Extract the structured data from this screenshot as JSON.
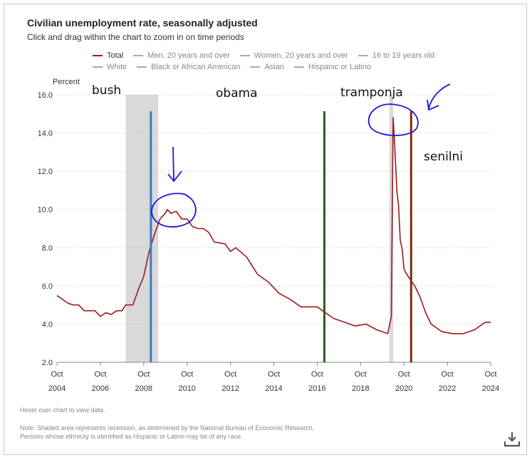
{
  "title": "Civilian unemployment rate, seasonally adjusted",
  "subtitle": "Click and drag within the chart to zoom in on time periods",
  "legend": {
    "row1": [
      "Total",
      "Men, 20 years and over",
      "Women, 20 years and over",
      "16 to 19 years old"
    ],
    "row2": [
      "White",
      "Black or African American",
      "Asian",
      "Hispanic or Latino"
    ]
  },
  "notes": {
    "hover": "Hover over chart to view data.",
    "note1": "Note: Shaded area represents recession, as determined by the National Bureau of Economic Research.",
    "note2": "Persons whose ethnicity is identified as Hispanic or Latino may be of any race."
  },
  "icons": {
    "download": "download-icon"
  },
  "colors": {
    "total": "#9b1b1b",
    "recession": "#d9d9d9",
    "bush_line": "#3a78c9",
    "trump_line": "#2d5a1e",
    "biden_line": "#7a2a10",
    "ink": "#1a1ad6"
  },
  "chart_data": {
    "type": "line",
    "title": "Civilian unemployment rate, seasonally adjusted",
    "ylabel": "Percent",
    "ylim": [
      2.0,
      16.0
    ],
    "xlim": [
      2004.75,
      2024.75
    ],
    "yticks": [
      "2.0",
      "4.0",
      "6.0",
      "8.0",
      "10.0",
      "12.0",
      "14.0",
      "16.0"
    ],
    "xticks": [
      {
        "x": 2004.75,
        "month": "Oct",
        "year": "2004"
      },
      {
        "x": 2006.75,
        "month": "Oct",
        "year": "2006"
      },
      {
        "x": 2008.75,
        "month": "Oct",
        "year": "2008"
      },
      {
        "x": 2010.75,
        "month": "Oct",
        "year": "2010"
      },
      {
        "x": 2012.75,
        "month": "Oct",
        "year": "2012"
      },
      {
        "x": 2014.75,
        "month": "Oct",
        "year": "2014"
      },
      {
        "x": 2016.75,
        "month": "Oct",
        "year": "2016"
      },
      {
        "x": 2018.75,
        "month": "Oct",
        "year": "2018"
      },
      {
        "x": 2020.75,
        "month": "Oct",
        "year": "2020"
      },
      {
        "x": 2022.75,
        "month": "Oct",
        "year": "2022"
      },
      {
        "x": 2024.75,
        "month": "Oct",
        "year": "2024"
      }
    ],
    "recessions": [
      [
        2007.92,
        2009.42
      ],
      [
        2020.08,
        2020.25
      ]
    ],
    "grid": true,
    "series": [
      {
        "name": "Total",
        "x": [
          2004.75,
          2005.0,
          2005.25,
          2005.5,
          2005.75,
          2006.0,
          2006.25,
          2006.5,
          2006.75,
          2007.0,
          2007.25,
          2007.5,
          2007.75,
          2007.92,
          2008.25,
          2008.5,
          2008.75,
          2009.0,
          2009.25,
          2009.5,
          2009.75,
          2009.83,
          2010.0,
          2010.25,
          2010.5,
          2010.75,
          2011.0,
          2011.25,
          2011.5,
          2011.75,
          2012.0,
          2012.5,
          2012.75,
          2013.0,
          2013.5,
          2014.0,
          2014.5,
          2015.0,
          2015.5,
          2016.0,
          2016.5,
          2016.75,
          2017.0,
          2017.5,
          2018.0,
          2018.5,
          2019.0,
          2019.5,
          2020.0,
          2020.17,
          2020.25,
          2020.33,
          2020.42,
          2020.5,
          2020.58,
          2020.67,
          2020.75,
          2020.83,
          2021.0,
          2021.25,
          2021.5,
          2021.75,
          2022.0,
          2022.5,
          2023.0,
          2023.5,
          2024.0,
          2024.5,
          2024.75
        ],
        "y": [
          5.5,
          5.3,
          5.1,
          5.0,
          5.0,
          4.7,
          4.7,
          4.7,
          4.4,
          4.6,
          4.5,
          4.7,
          4.7,
          5.0,
          5.0,
          5.8,
          6.5,
          7.8,
          8.7,
          9.5,
          9.8,
          10.0,
          9.8,
          9.9,
          9.5,
          9.5,
          9.1,
          9.0,
          9.0,
          8.8,
          8.3,
          8.2,
          7.8,
          8.0,
          7.5,
          6.6,
          6.2,
          5.6,
          5.3,
          4.9,
          4.9,
          4.9,
          4.7,
          4.3,
          4.1,
          3.9,
          4.0,
          3.7,
          3.5,
          4.4,
          14.8,
          13.2,
          11.0,
          10.2,
          8.4,
          7.9,
          6.9,
          6.7,
          6.4,
          6.0,
          5.4,
          4.6,
          4.0,
          3.6,
          3.5,
          3.5,
          3.7,
          4.1,
          4.1
        ]
      }
    ],
    "annotations": {
      "bush": "bush",
      "obama": "obama",
      "trump": "tramponja",
      "biden": "senilni"
    },
    "vlines": {
      "bush": 2009.08,
      "trump": 2017.08,
      "biden": 2021.08
    }
  }
}
